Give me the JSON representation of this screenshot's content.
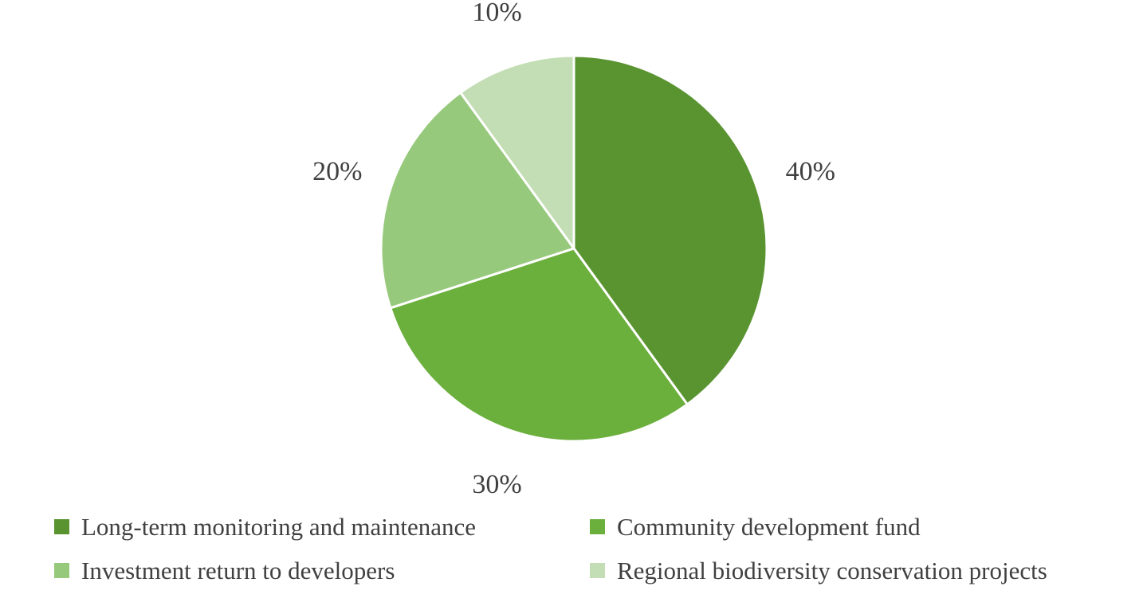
{
  "chart_data": {
    "type": "pie",
    "title": "",
    "start_angle_deg": 0,
    "direction": "clockwise",
    "slices": [
      {
        "label": "Long-term monitoring and maintenance",
        "value": 40,
        "display": "40%",
        "color": "#5A9431"
      },
      {
        "label": "Community development fund",
        "value": 30,
        "display": "30%",
        "color": "#6BAF3C"
      },
      {
        "label": "Investment return to developers",
        "value": 20,
        "display": "20%",
        "color": "#97C97C"
      },
      {
        "label": "Regional biodiversity conservation projects",
        "value": 10,
        "display": "10%",
        "color": "#C3DEB4"
      }
    ],
    "legend_position": "bottom"
  }
}
